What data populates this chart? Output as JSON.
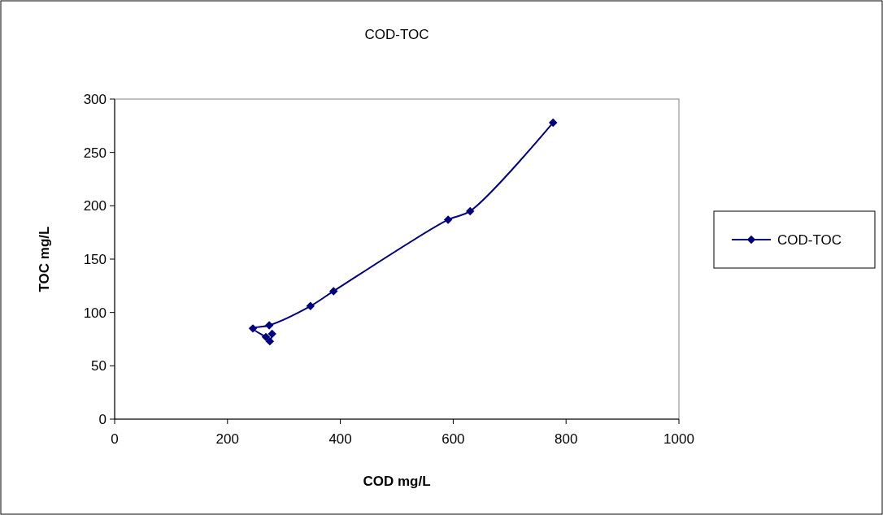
{
  "chart_data": {
    "type": "line",
    "title": "COD-TOC",
    "xlabel": "COD mg/L",
    "ylabel": "TOC mg/L",
    "series": [
      {
        "name": "COD-TOC",
        "color": "#000080",
        "x": [
          279,
          275,
          268,
          245,
          274,
          347,
          388,
          591,
          630,
          777
        ],
        "values": [
          80,
          73,
          77,
          85,
          88,
          106,
          120,
          187,
          195,
          278
        ]
      }
    ],
    "xlim": [
      0,
      1000
    ],
    "xticks": [
      0,
      200,
      400,
      600,
      800,
      1000
    ],
    "ylim": [
      0,
      300
    ],
    "yticks": [
      0,
      50,
      100,
      150,
      200,
      250,
      300
    ],
    "grid": false,
    "legend": "right",
    "marker": "diamond",
    "line_style": "solid"
  }
}
